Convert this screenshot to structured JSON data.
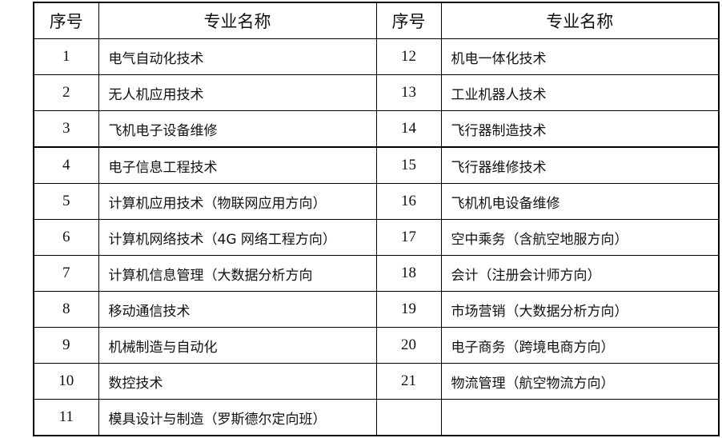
{
  "headers": [
    "序号",
    "专业名称",
    "序号",
    "专业名称"
  ],
  "rows": [
    {
      "n1": "1",
      "m1": "电气自动化技术",
      "n2": "12",
      "m2": "机电一体化技术"
    },
    {
      "n1": "2",
      "m1": "无人机应用技术",
      "n2": "13",
      "m2": "工业机器人技术"
    },
    {
      "n1": "3",
      "m1": "飞机电子设备维修",
      "n2": "14",
      "m2": "飞行器制造技术"
    },
    {
      "n1": "4",
      "m1": "电子信息工程技术",
      "n2": "15",
      "m2": "飞行器维修技术"
    },
    {
      "n1": "5",
      "m1": "计算机应用技术（物联网应用方向）",
      "n2": "16",
      "m2": "飞机机电设备维修"
    },
    {
      "n1": "6",
      "m1": "计算机网络技术（4G 网络工程方向）",
      "n2": "17",
      "m2": "空中乘务（含航空地服方向）"
    },
    {
      "n1": "7",
      "m1": "计算机信息管理（大数据分析方向",
      "n2": "18",
      "m2": "会计（注册会计师方向）"
    },
    {
      "n1": "8",
      "m1": "移动通信技术",
      "n2": "19",
      "m2": "市场营销（大数据分析方向）"
    },
    {
      "n1": "9",
      "m1": "机械制造与自动化",
      "n2": "20",
      "m2": "电子商务（跨境电商方向）"
    },
    {
      "n1": "10",
      "m1": "数控技术",
      "n2": "21",
      "m2": "物流管理（航空物流方向）"
    },
    {
      "n1": "11",
      "m1": "模具设计与制造（罗斯德尔定向班）",
      "n2": "",
      "m2": ""
    }
  ]
}
